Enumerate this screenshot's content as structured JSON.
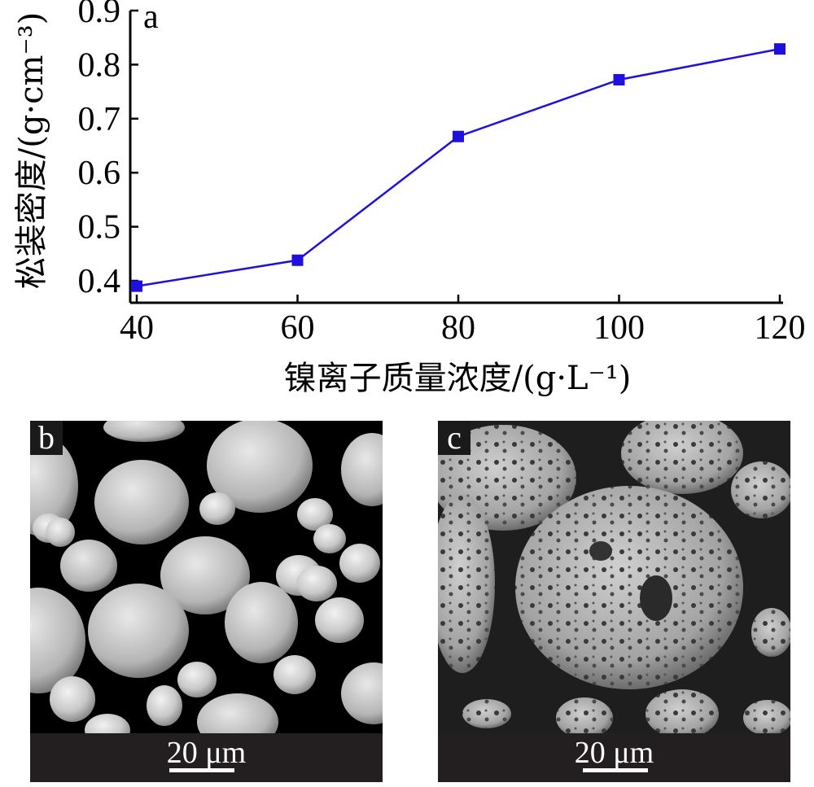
{
  "chart_data": {
    "type": "line",
    "panel_label": "a",
    "x": [
      40,
      60,
      80,
      100,
      120
    ],
    "series": [
      {
        "values": [
          0.39,
          0.438,
          0.667,
          0.772,
          0.829
        ],
        "color": "#1f10e0",
        "marker": "square"
      }
    ],
    "xlim": [
      40,
      120
    ],
    "ylim": [
      0.35,
      0.9
    ],
    "xticks": [
      "40",
      "60",
      "80",
      "100",
      "120"
    ],
    "yticks": [
      "0.4",
      "0.5",
      "0.6",
      "0.7",
      "0.8",
      "0.9"
    ],
    "xlabel": "镍离子质量浓度/(g·L⁻¹)",
    "ylabel": "松装密度/(g·cm⁻³)",
    "grid": false
  },
  "images": [
    {
      "label": "b",
      "scale_bar": "20 μm"
    },
    {
      "label": "c",
      "scale_bar": "20 μm"
    }
  ]
}
